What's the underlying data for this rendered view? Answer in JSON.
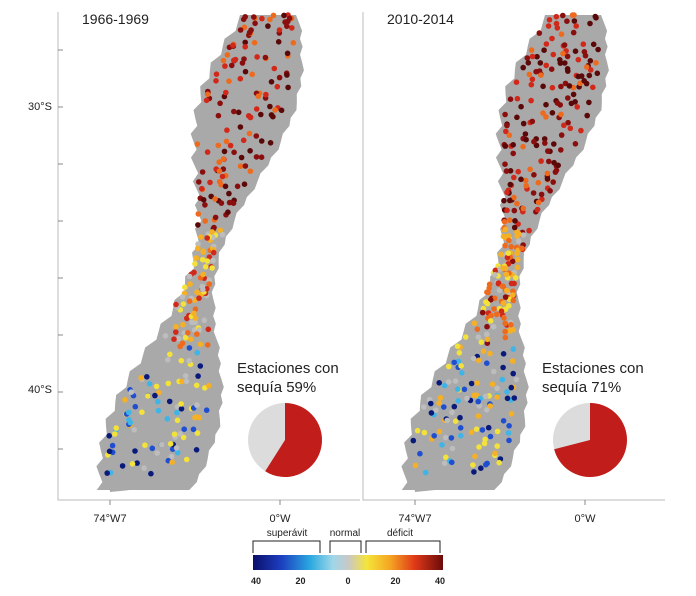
{
  "panels": [
    {
      "title": "1966-1969",
      "caption_line1": "Estaciones con",
      "caption_line2": "sequía 59%",
      "drought_percent": 59,
      "lon_labels": [
        "74°W7",
        "0°W"
      ]
    },
    {
      "title": "2010-2014",
      "caption_line1": "Estaciones con",
      "caption_line2": "sequía 71%",
      "drought_percent": 71,
      "lon_labels": [
        "74°W7",
        "0°W"
      ]
    }
  ],
  "lat_labels": [
    "30°S",
    "40°S"
  ],
  "legend": {
    "superavit": "superávit",
    "normal": "normal",
    "deficit": "déficit",
    "tick_labels": [
      "40",
      "20",
      "0",
      "20",
      "40"
    ]
  }
}
